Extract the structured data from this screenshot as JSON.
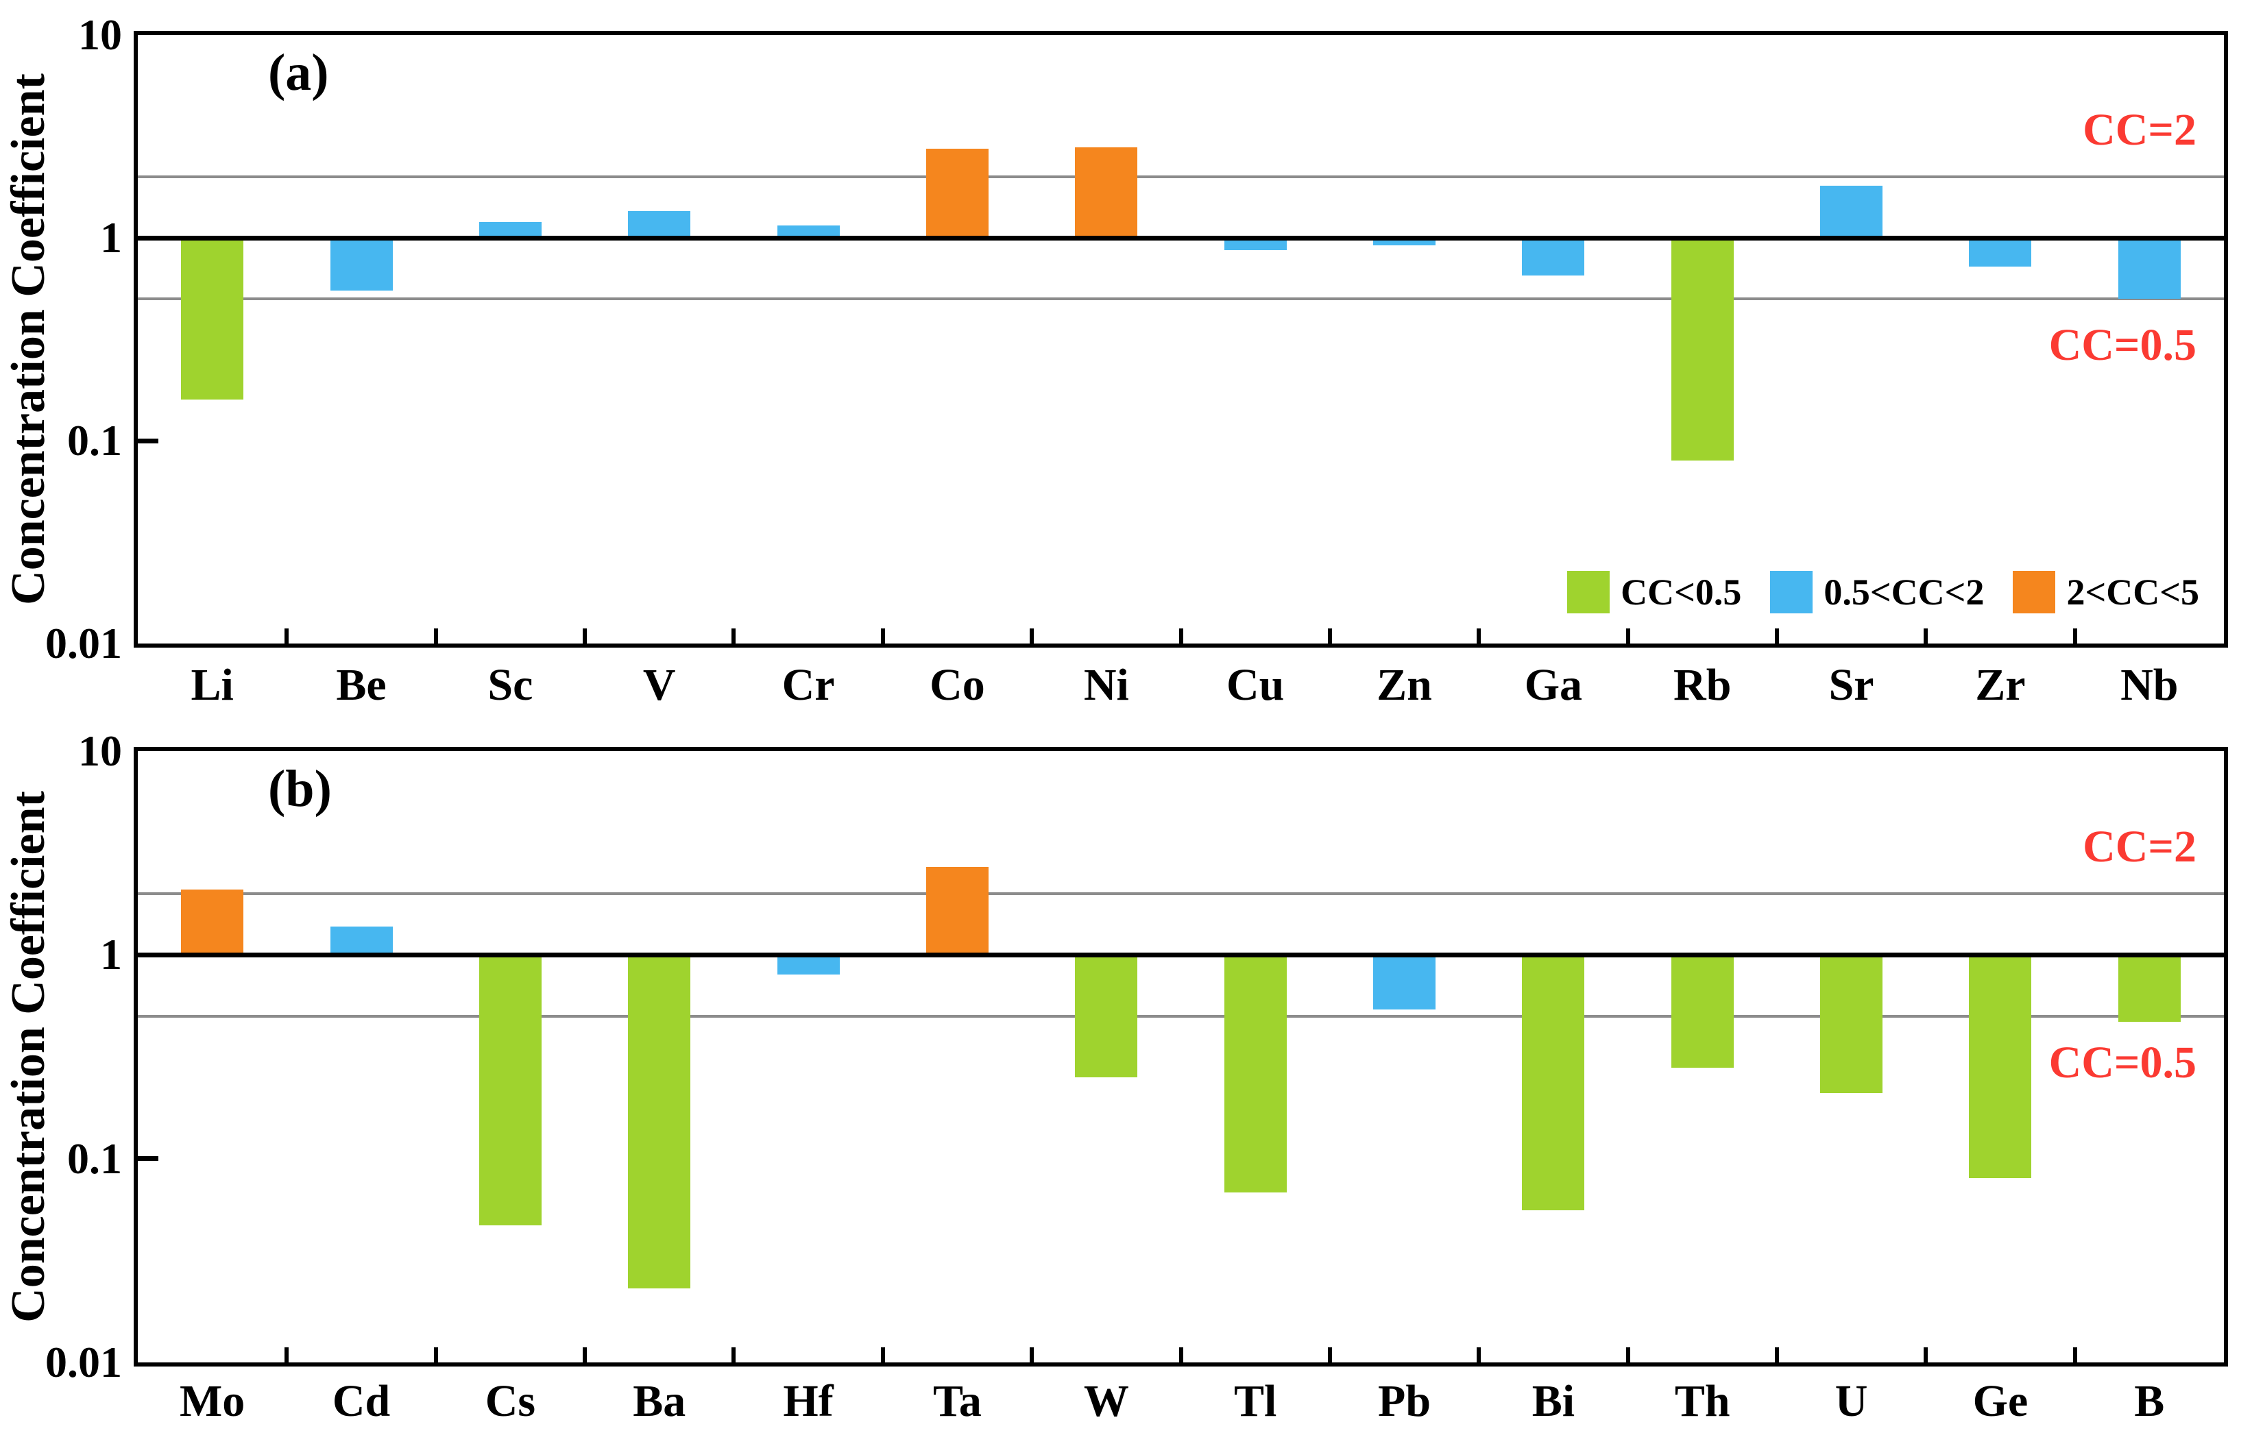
{
  "figure": {
    "background": "#ffffff",
    "ylabel": "Concentration Coefficient",
    "y_tick_labels": [
      "10",
      "1",
      "0.1",
      "0.01"
    ],
    "colors": {
      "green": "#9FD32E",
      "blue": "#47B7F0",
      "orange": "#F5861E",
      "annotation_red": "#FB3A32",
      "gridline_gray": "#8C8C8C",
      "axis_black": "#000000"
    },
    "legend": [
      {
        "label": "CC<0.5",
        "color_key": "green"
      },
      {
        "label": "0.5<CC<2",
        "color_key": "blue"
      },
      {
        "label": "2<CC<5",
        "color_key": "orange"
      }
    ],
    "legend_position": "inside bottom-right of panel (a)"
  },
  "chart_data": [
    {
      "type": "bar",
      "panel_label": "(a)",
      "ylabel": "Concentration Coefficient",
      "y_scale": "log",
      "ylim": [
        0.01,
        10
      ],
      "y_ticks": [
        10,
        1,
        0.1,
        0.01
      ],
      "baseline": 1,
      "grid": "off",
      "ref_lines": [
        {
          "value": 2,
          "label": "CC=2"
        },
        {
          "value": 0.5,
          "label": "CC=0.5"
        }
      ],
      "color_rule": "green if CC<0.5, blue if 0.5<=CC<2, orange if 2<=CC<5",
      "categories": [
        "Li",
        "Be",
        "Sc",
        "V",
        "Cr",
        "Co",
        "Ni",
        "Cu",
        "Zn",
        "Ga",
        "Rb",
        "Sr",
        "Zr",
        "Nb"
      ],
      "values": [
        0.16,
        0.55,
        1.2,
        1.35,
        1.15,
        2.75,
        2.8,
        0.87,
        0.92,
        0.65,
        0.08,
        1.8,
        0.72,
        0.5
      ]
    },
    {
      "type": "bar",
      "panel_label": "(b)",
      "ylabel": "Concentration Coefficient",
      "y_scale": "log",
      "ylim": [
        0.01,
        10
      ],
      "y_ticks": [
        10,
        1,
        0.1,
        0.01
      ],
      "baseline": 1,
      "grid": "off",
      "ref_lines": [
        {
          "value": 2,
          "label": "CC=2"
        },
        {
          "value": 0.5,
          "label": "CC=0.5"
        }
      ],
      "color_rule": "green if CC<0.5, blue if 0.5<=CC<2, orange if 2<=CC<5",
      "categories": [
        "Mo",
        "Cd",
        "Cs",
        "Ba",
        "Hf",
        "Ta",
        "W",
        "Tl",
        "Pb",
        "Bi",
        "Th",
        "U",
        "Ge",
        "B"
      ],
      "values": [
        2.1,
        1.38,
        0.047,
        0.023,
        0.8,
        2.7,
        0.25,
        0.068,
        0.54,
        0.056,
        0.28,
        0.21,
        0.08,
        0.47
      ]
    }
  ]
}
